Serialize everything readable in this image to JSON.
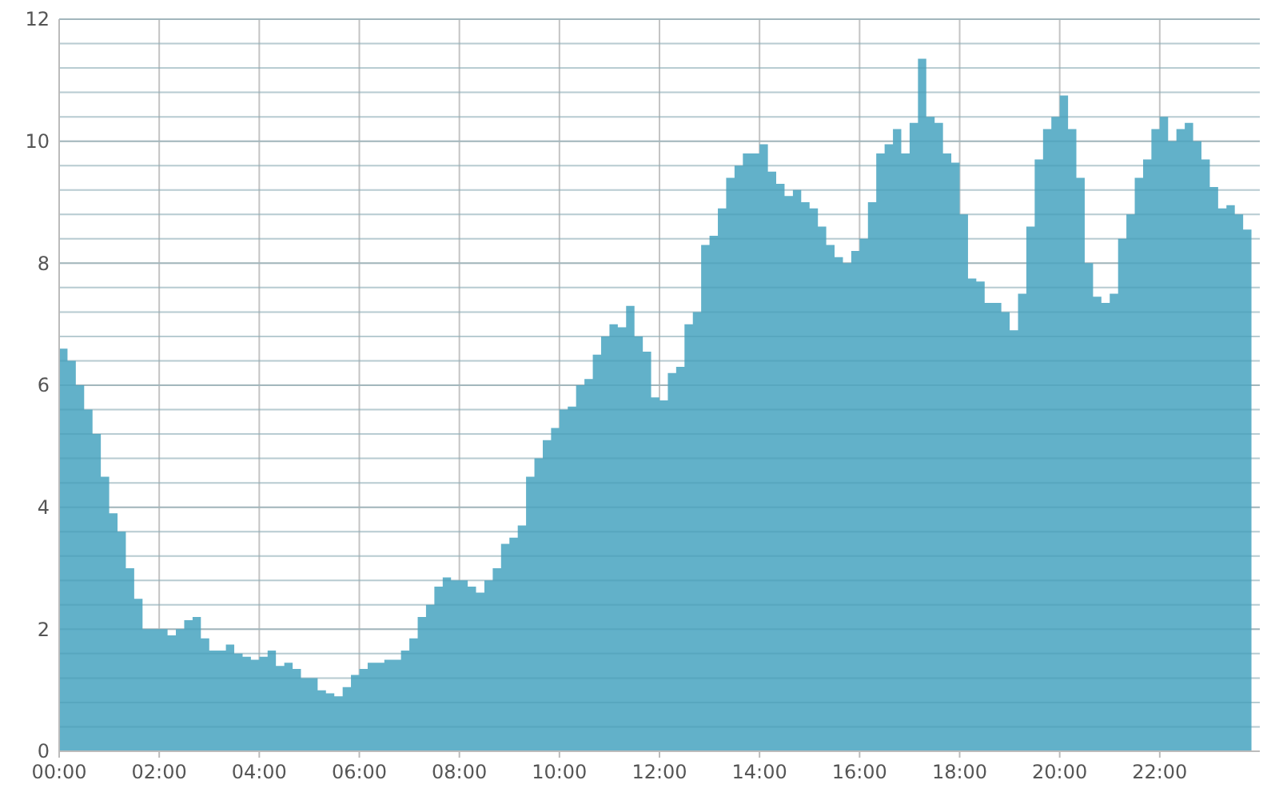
{
  "chart_data": {
    "type": "area",
    "xlim": [
      0,
      24
    ],
    "ylim": [
      0,
      12
    ],
    "xticks": [
      {
        "value": 0,
        "label": "00:00"
      },
      {
        "value": 2,
        "label": "02:00"
      },
      {
        "value": 4,
        "label": "04:00"
      },
      {
        "value": 6,
        "label": "06:00"
      },
      {
        "value": 8,
        "label": "08:00"
      },
      {
        "value": 10,
        "label": "10:00"
      },
      {
        "value": 12,
        "label": "12:00"
      },
      {
        "value": 14,
        "label": "14:00"
      },
      {
        "value": 16,
        "label": "16:00"
      },
      {
        "value": 18,
        "label": "18:00"
      },
      {
        "value": 20,
        "label": "20:00"
      },
      {
        "value": 22,
        "label": "22:00"
      }
    ],
    "yticks": [
      0,
      {
        "value": 0.4,
        "label": null
      },
      {
        "value": 0.8,
        "label": null
      },
      {
        "value": 1.2,
        "label": null
      },
      {
        "value": 1.6,
        "label": null
      },
      2,
      {
        "value": 2.4,
        "label": null
      },
      {
        "value": 2.8,
        "label": null
      },
      {
        "value": 3.2,
        "label": null
      },
      {
        "value": 3.6,
        "label": null
      },
      4,
      {
        "value": 4.4,
        "label": null
      },
      {
        "value": 4.8,
        "label": null
      },
      {
        "value": 5.2,
        "label": null
      },
      {
        "value": 5.6,
        "label": null
      },
      6,
      {
        "value": 6.4,
        "label": null
      },
      {
        "value": 6.8,
        "label": null
      },
      {
        "value": 7.2,
        "label": null
      },
      {
        "value": 7.6,
        "label": null
      },
      8,
      {
        "value": 8.4,
        "label": null
      },
      {
        "value": 8.8,
        "label": null
      },
      {
        "value": 9.2,
        "label": null
      },
      {
        "value": 9.6,
        "label": null
      },
      10,
      {
        "value": 10.4,
        "label": null
      },
      {
        "value": 10.8,
        "label": null
      },
      {
        "value": 11.2,
        "label": null
      },
      {
        "value": 11.6,
        "label": null
      },
      12
    ],
    "grid": true,
    "series": [
      {
        "color": "#62b1c9",
        "x": [
          0,
          0.167,
          0.333,
          0.5,
          0.667,
          0.833,
          1,
          1.167,
          1.333,
          1.5,
          1.667,
          1.833,
          2,
          2.167,
          2.333,
          2.5,
          2.667,
          2.833,
          3,
          3.167,
          3.333,
          3.5,
          3.667,
          3.833,
          4,
          4.167,
          4.333,
          4.5,
          4.667,
          4.833,
          5,
          5.167,
          5.333,
          5.5,
          5.667,
          5.833,
          6,
          6.167,
          6.333,
          6.5,
          6.667,
          6.833,
          7,
          7.167,
          7.333,
          7.5,
          7.667,
          7.833,
          8,
          8.167,
          8.333,
          8.5,
          8.667,
          8.833,
          9,
          9.167,
          9.333,
          9.5,
          9.667,
          9.833,
          10,
          10.167,
          10.333,
          10.5,
          10.667,
          10.833,
          11,
          11.167,
          11.333,
          11.5,
          11.667,
          11.833,
          12,
          12.167,
          12.333,
          12.5,
          12.667,
          12.833,
          13,
          13.167,
          13.333,
          13.5,
          13.667,
          13.833,
          14,
          14.167,
          14.333,
          14.5,
          14.667,
          14.833,
          15,
          15.167,
          15.333,
          15.5,
          15.667,
          15.833,
          16,
          16.167,
          16.333,
          16.5,
          16.667,
          16.833,
          17,
          17.167,
          17.333,
          17.5,
          17.667,
          17.833,
          18,
          18.167,
          18.333,
          18.5,
          18.667,
          18.833,
          19,
          19.167,
          19.333,
          19.5,
          19.667,
          19.833,
          20,
          20.167,
          20.333,
          20.5,
          20.667,
          20.833,
          21,
          21.167,
          21.333,
          21.5,
          21.667,
          21.833,
          22,
          22.167,
          22.333,
          22.5,
          22.667,
          22.833,
          23,
          23.167,
          23.333,
          23.5,
          23.667,
          23.833
        ],
        "values": [
          6.6,
          6.4,
          6.0,
          5.6,
          5.2,
          4.5,
          3.9,
          3.6,
          3.0,
          2.5,
          2.0,
          2.0,
          2.0,
          1.9,
          2.0,
          2.15,
          2.2,
          1.85,
          1.65,
          1.65,
          1.75,
          1.6,
          1.55,
          1.5,
          1.55,
          1.65,
          1.4,
          1.45,
          1.35,
          1.2,
          1.2,
          1.0,
          0.95,
          0.9,
          1.05,
          1.25,
          1.35,
          1.45,
          1.45,
          1.5,
          1.5,
          1.65,
          1.85,
          2.2,
          2.4,
          2.7,
          2.85,
          2.8,
          2.8,
          2.7,
          2.6,
          2.8,
          3.0,
          3.4,
          3.5,
          3.7,
          4.5,
          4.8,
          5.1,
          5.3,
          5.6,
          5.65,
          6.0,
          6.1,
          6.5,
          6.8,
          7.0,
          6.95,
          7.3,
          6.8,
          6.55,
          5.8,
          5.75,
          6.2,
          6.3,
          7.0,
          7.2,
          8.3,
          8.45,
          8.9,
          9.4,
          9.6,
          9.8,
          9.8,
          9.95,
          9.5,
          9.3,
          9.1,
          9.2,
          9.0,
          8.9,
          8.6,
          8.3,
          8.1,
          8.0,
          8.2,
          8.4,
          9.0,
          9.8,
          9.95,
          10.2,
          9.8,
          10.3,
          11.35,
          10.4,
          10.3,
          9.8,
          9.65,
          8.8,
          7.75,
          7.7,
          7.35,
          7.35,
          7.2,
          6.9,
          7.5,
          8.6,
          9.7,
          10.2,
          10.4,
          10.75,
          10.2,
          9.4,
          8.0,
          7.45,
          7.35,
          7.5,
          8.4,
          8.8,
          9.4,
          9.7,
          10.2,
          10.4,
          10.0,
          10.2,
          10.3,
          10.0,
          9.7,
          9.25,
          8.9,
          8.95,
          8.8,
          8.55,
          8.5
        ]
      }
    ]
  }
}
